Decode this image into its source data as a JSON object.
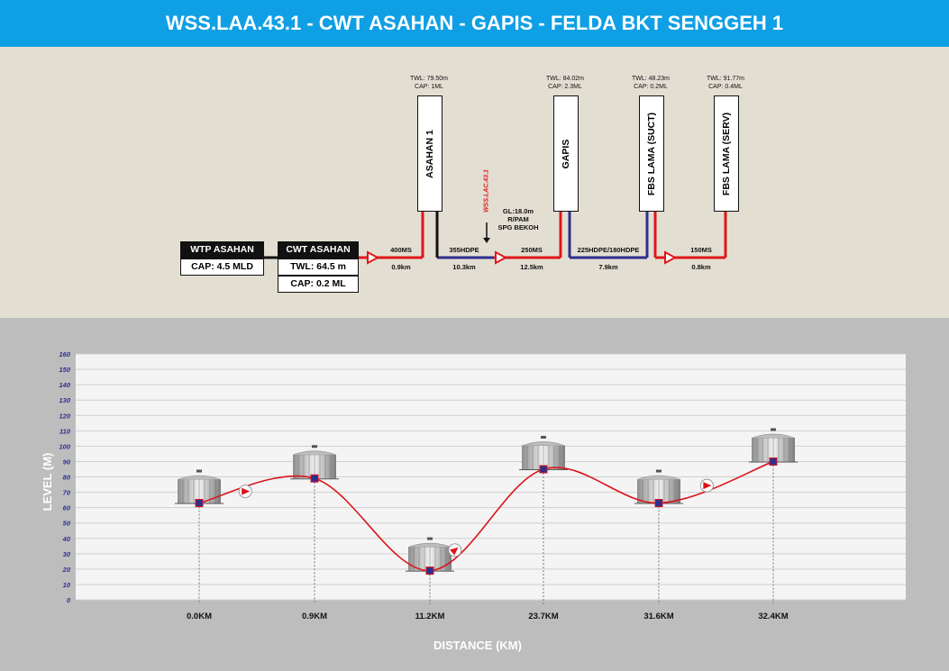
{
  "title": "WSS.LAA.43.1 - CWT ASAHAN - GAPIS - FELDA BKT SENGGEH 1",
  "schematic": {
    "wtp": {
      "name": "WTP ASAHAN",
      "cap": "CAP: 4.5 MLD"
    },
    "cwt": {
      "name": "CWT ASAHAN",
      "twl": "TWL: 64.5 m",
      "cap": "CAP: 0.2 ML"
    },
    "tanks": [
      {
        "name": "ASAHAN 1",
        "twl": "TWL: 79.50m",
        "cap": "CAP: 1ML"
      },
      {
        "name": "GAPIS",
        "twl": "TWL: 84.02m",
        "cap": "CAP: 2.3ML"
      },
      {
        "name": "FBS LAMA (SUCT)",
        "twl": "TWL: 48.23m",
        "cap": "CAP: 0.2ML"
      },
      {
        "name": "FBS LAMA (SERV)",
        "twl": "TWL: 91.77m",
        "cap": "CAP: 0.4ML"
      }
    ],
    "pipes": [
      {
        "spec": "400MS",
        "length": "0.9km"
      },
      {
        "spec": "355HDPE",
        "length": "10.3km"
      },
      {
        "spec": "250MS",
        "length": "12.5km"
      },
      {
        "spec": "225HDPE/180HDPE",
        "length": "7.9km"
      },
      {
        "spec": "150MS",
        "length": "0.8km"
      }
    ],
    "branch_label": "WSS.LAC.43.1",
    "pump_gl": "GL:18.0m",
    "pump_type": "R/PAM",
    "pump_site": "SPG BEKOH"
  },
  "chart_data": {
    "type": "line",
    "ylabel": "LEVEL (M)",
    "xlabel": "DISTANCE (KM)",
    "ylim": [
      0,
      160
    ],
    "yticks": [
      0,
      10,
      20,
      30,
      40,
      50,
      60,
      70,
      80,
      90,
      100,
      110,
      120,
      130,
      140,
      150,
      160
    ],
    "categories": [
      "0.0KM",
      "0.9KM",
      "11.2KM",
      "23.7KM",
      "31.6KM",
      "32.4KM"
    ],
    "values": [
      63,
      79,
      19,
      85,
      63,
      90
    ],
    "grid": true,
    "colors": {
      "line": "#d9141b",
      "marker": "#2e2f8f",
      "marker_edge": "#d9141b"
    }
  }
}
